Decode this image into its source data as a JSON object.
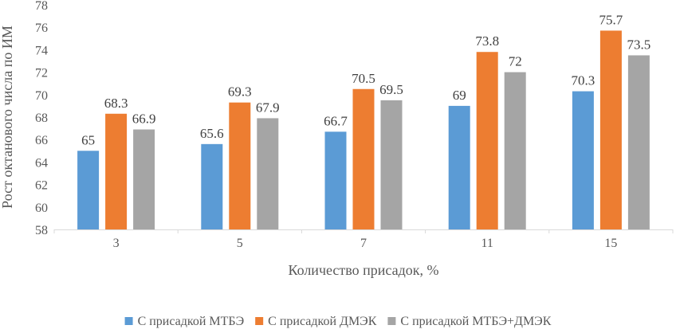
{
  "chart_data": {
    "type": "bar",
    "title": "",
    "xlabel": "Количество присадок, %",
    "ylabel": "Рост октанового числа по ИМ",
    "categories": [
      "3",
      "5",
      "7",
      "11",
      "15"
    ],
    "series": [
      {
        "name": "С присадкой МТБЭ",
        "values": [
          65,
          65.6,
          66.7,
          69,
          70.3
        ],
        "color": "#5B9BD5"
      },
      {
        "name": "С присадкой ДМЭК",
        "values": [
          68.3,
          69.3,
          70.5,
          73.8,
          75.7
        ],
        "color": "#ED7D31"
      },
      {
        "name": "С присадкой МТБЭ+ДМЭК",
        "values": [
          66.9,
          67.9,
          69.5,
          72,
          73.5
        ],
        "color": "#A5A5A5"
      }
    ],
    "ylim": [
      58,
      78
    ],
    "yticks": [
      58,
      60,
      62,
      64,
      66,
      68,
      70,
      72,
      74,
      76,
      78
    ],
    "grid": false,
    "legend_position": "bottom"
  }
}
